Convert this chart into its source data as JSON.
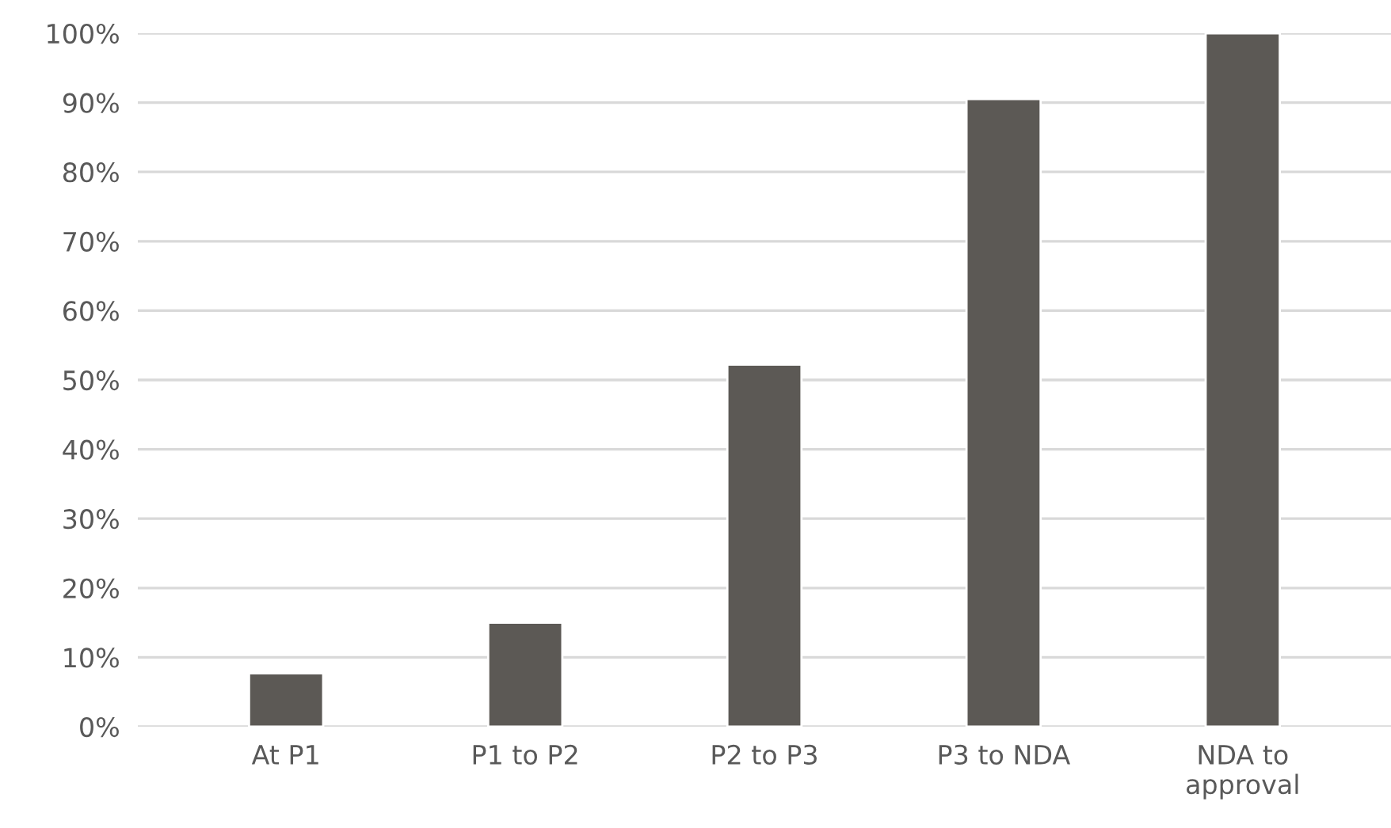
{
  "chart_data": {
    "type": "bar",
    "categories": [
      "At P1",
      "P1 to P2",
      "P2 to P3",
      "P3 to NDA",
      "NDA to\napproval"
    ],
    "values": [
      7.7,
      15.0,
      52.2,
      90.5,
      100
    ],
    "color": "#5c5955",
    "ylim": [
      0,
      100
    ],
    "yticks": [
      {
        "value": 0,
        "label": "0%"
      },
      {
        "value": 10,
        "label": "10%"
      },
      {
        "value": 20,
        "label": "20%"
      },
      {
        "value": 30,
        "label": "30%"
      },
      {
        "value": 40,
        "label": "40%"
      },
      {
        "value": 50,
        "label": "50%"
      },
      {
        "value": 60,
        "label": "60%"
      },
      {
        "value": 70,
        "label": "70%"
      },
      {
        "value": 80,
        "label": "80%"
      },
      {
        "value": 90,
        "label": "90%"
      },
      {
        "value": 100,
        "label": "100%"
      }
    ],
    "grid": "y"
  }
}
